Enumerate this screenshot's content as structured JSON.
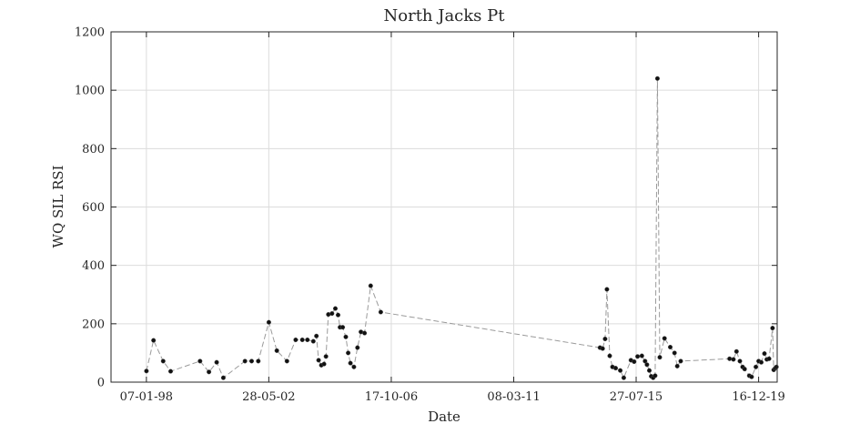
{
  "chart_data": {
    "type": "line",
    "title": "North Jacks Pt",
    "xlabel": "Date",
    "ylabel": "WQ SIL RSI",
    "x_ticks": [
      "07-01-98",
      "28-05-02",
      "17-10-06",
      "08-03-11",
      "27-07-15",
      "16-12-19"
    ],
    "y_ticks": [
      "0",
      "200",
      "400",
      "600",
      "800",
      "1000",
      "1200"
    ],
    "ylim": [
      0,
      1200
    ],
    "xlim": [
      "1996-10-01",
      "2020-08-15"
    ],
    "grid": true,
    "series": [
      {
        "marker": "filled-circle",
        "line_style": "dashed",
        "color": "#9a9a9a",
        "marker_color": "#111111",
        "points": [
          [
            "1998-01-07",
            38
          ],
          [
            "1998-04-10",
            143
          ],
          [
            "1998-08-15",
            72
          ],
          [
            "1998-11-20",
            37
          ],
          [
            "1999-12-10",
            72
          ],
          [
            "2000-04-05",
            35
          ],
          [
            "2000-07-15",
            68
          ],
          [
            "2000-10-10",
            15
          ],
          [
            "2001-07-20",
            72
          ],
          [
            "2001-10-15",
            72
          ],
          [
            "2002-01-10",
            72
          ],
          [
            "2002-05-28",
            205
          ],
          [
            "2002-09-10",
            108
          ],
          [
            "2003-01-20",
            72
          ],
          [
            "2003-05-15",
            145
          ],
          [
            "2003-08-10",
            145
          ],
          [
            "2003-10-15",
            145
          ],
          [
            "2004-01-01",
            140
          ],
          [
            "2004-02-10",
            158
          ],
          [
            "2004-03-10",
            75
          ],
          [
            "2004-04-15",
            58
          ],
          [
            "2004-05-20",
            62
          ],
          [
            "2004-06-15",
            88
          ],
          [
            "2004-07-15",
            232
          ],
          [
            "2004-09-01",
            235
          ],
          [
            "2004-10-15",
            252
          ],
          [
            "2004-11-20",
            230
          ],
          [
            "2004-12-15",
            188
          ],
          [
            "2005-01-20",
            188
          ],
          [
            "2005-03-01",
            155
          ],
          [
            "2005-04-01",
            100
          ],
          [
            "2005-05-01",
            65
          ],
          [
            "2005-06-15",
            52
          ],
          [
            "2005-08-01",
            118
          ],
          [
            "2005-09-15",
            172
          ],
          [
            "2005-11-01",
            168
          ],
          [
            "2006-01-20",
            330
          ],
          [
            "2006-06-01",
            240
          ],
          [
            "2014-04-10",
            118
          ],
          [
            "2014-05-15",
            115
          ],
          [
            "2014-06-15",
            148
          ],
          [
            "2014-07-10",
            318
          ],
          [
            "2014-08-15",
            90
          ],
          [
            "2014-09-20",
            52
          ],
          [
            "2014-11-01",
            48
          ],
          [
            "2015-01-01",
            40
          ],
          [
            "2015-02-15",
            15
          ],
          [
            "2015-05-20",
            75
          ],
          [
            "2015-07-01",
            70
          ],
          [
            "2015-08-15",
            88
          ],
          [
            "2015-10-10",
            90
          ],
          [
            "2015-11-20",
            72
          ],
          [
            "2015-12-15",
            60
          ],
          [
            "2016-01-15",
            40
          ],
          [
            "2016-02-10",
            20
          ],
          [
            "2016-03-05",
            15
          ],
          [
            "2016-04-01",
            22
          ],
          [
            "2016-05-01",
            1040
          ],
          [
            "2016-06-01",
            85
          ],
          [
            "2016-08-01",
            150
          ],
          [
            "2016-10-15",
            120
          ],
          [
            "2016-12-10",
            100
          ],
          [
            "2017-01-15",
            55
          ],
          [
            "2017-03-01",
            72
          ],
          [
            "2018-12-01",
            80
          ],
          [
            "2019-01-20",
            78
          ],
          [
            "2019-03-01",
            105
          ],
          [
            "2019-04-15",
            72
          ],
          [
            "2019-05-20",
            52
          ],
          [
            "2019-06-15",
            45
          ],
          [
            "2019-08-15",
            22
          ],
          [
            "2019-09-15",
            18
          ],
          [
            "2019-11-10",
            52
          ],
          [
            "2019-12-16",
            72
          ],
          [
            "2020-01-20",
            68
          ],
          [
            "2020-03-01",
            98
          ],
          [
            "2020-04-01",
            78
          ],
          [
            "2020-05-01",
            80
          ],
          [
            "2020-06-15",
            185
          ],
          [
            "2020-07-01",
            42
          ],
          [
            "2020-07-20",
            48
          ],
          [
            "2020-08-05",
            52
          ]
        ]
      }
    ]
  }
}
